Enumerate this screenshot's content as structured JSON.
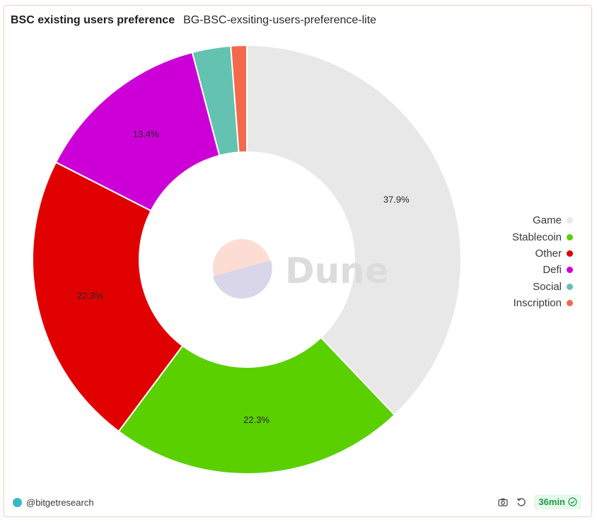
{
  "header": {
    "title": "BSC existing users preference",
    "subtitle": "BG-BSC-exsiting-users-preference-lite"
  },
  "chart_data": {
    "type": "pie",
    "variant": "donut",
    "categories": [
      "Game",
      "Stablecoin",
      "Other",
      "Defi",
      "Social",
      "Inscription"
    ],
    "values": [
      37.9,
      22.3,
      22.3,
      13.4,
      2.9,
      1.2
    ],
    "data_labels": [
      "37.9%",
      "22.3%",
      "22.3%",
      "13.4%",
      "",
      ""
    ],
    "colors": [
      "#e8e8e8",
      "#5ad000",
      "#e10000",
      "#cc00d6",
      "#63c3b0",
      "#f4694b"
    ],
    "legend_position": "right"
  },
  "watermark": {
    "text": "Dune"
  },
  "footer": {
    "author": "@bitgetresearch",
    "refresh_label": "36min",
    "icons": [
      "camera-icon",
      "refresh-icon",
      "check-circle-icon"
    ]
  }
}
